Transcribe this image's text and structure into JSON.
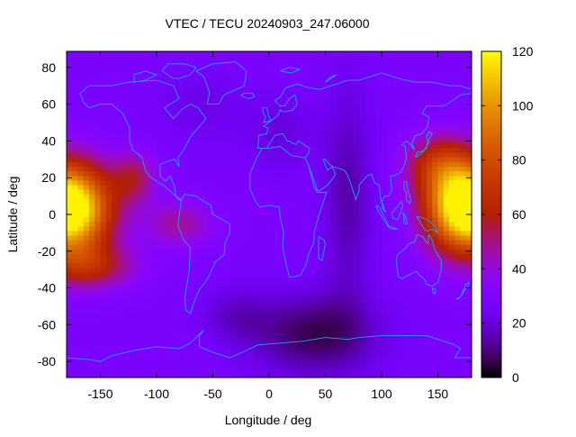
{
  "chart_data": {
    "type": "heatmap",
    "title": "VTEC / TECU 20240903_247.06000",
    "xlabel": "Longitude / deg",
    "ylabel": "Latitude / deg",
    "xlim": [
      -180,
      180
    ],
    "ylim": [
      -88.75,
      88.75
    ],
    "x_ticks": [
      -150,
      -100,
      -50,
      0,
      50,
      100,
      150
    ],
    "x_tick_labels": [
      "-150",
      "-100",
      "-50",
      "0",
      "50",
      "100",
      "150"
    ],
    "y_ticks": [
      -80,
      -60,
      -40,
      -20,
      0,
      20,
      40,
      60,
      80
    ],
    "y_tick_labels": [
      "-80",
      "-60",
      "-40",
      "-20",
      "0",
      "20",
      "40",
      "60",
      "80"
    ],
    "colorbar": {
      "range": [
        0,
        120
      ],
      "ticks": [
        0,
        20,
        40,
        60,
        80,
        100,
        120
      ],
      "tick_labels": [
        "0",
        "20",
        "40",
        "60",
        "80",
        "100",
        "120"
      ],
      "palette": "gnuplot-rgbformulae-7-5-15 (black-purple-red-orange-yellow)"
    },
    "grid": false,
    "overlay": "coastlines",
    "coastline_color": "#1ea0ff",
    "value_features": [
      {
        "lon": -165,
        "lat": 5,
        "vtec": 110,
        "note": "equatorial crest west Pacific"
      },
      {
        "lon": 165,
        "lat": 5,
        "vtec": 105,
        "note": "equatorial crest east Asia/Pacific"
      },
      {
        "lon": 40,
        "lat": -65,
        "vtec": 5,
        "note": "minimum south of Africa"
      },
      {
        "lon": 0,
        "lat": 0,
        "vtec": 30
      },
      {
        "lon": 0,
        "lat": 70,
        "vtec": 28
      }
    ],
    "grid_resolution": {
      "dlon": 5,
      "dlat": 2.5
    }
  }
}
